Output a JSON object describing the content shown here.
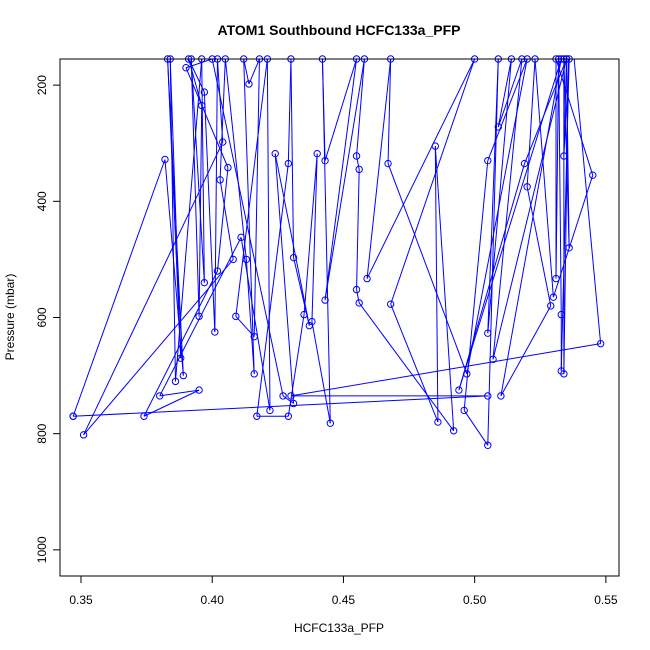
{
  "chart_data": {
    "type": "scatter",
    "title": "ATOM1 Southbound HCFC133a_PFP",
    "xlabel": "HCFC133a_PFP",
    "ylabel": "Pressure (mbar)",
    "xlim": [
      0.342,
      0.555
    ],
    "ylim": [
      1045,
      155
    ],
    "y_reversed": true,
    "x_ticks": [
      0.35,
      0.4,
      0.45,
      0.5,
      0.55
    ],
    "x_tick_labels": [
      "0.35",
      "0.40",
      "0.45",
      "0.50",
      "0.55"
    ],
    "y_ticks": [
      200,
      400,
      600,
      800,
      1000
    ],
    "y_tick_labels": [
      "200",
      "400",
      "600",
      "800",
      "1000"
    ],
    "series_color": "#0000ff",
    "marker": "open-circle",
    "connect_points": true,
    "series": [
      {
        "points": [
          [
            0.347,
            770
          ],
          [
            0.382,
            328
          ],
          [
            0.389,
            700
          ],
          [
            0.383,
            155
          ],
          [
            0.388,
            670
          ],
          [
            0.384,
            155
          ],
          [
            0.386,
            710
          ],
          [
            0.396,
            155
          ],
          [
            0.397,
            540
          ],
          [
            0.392,
            155
          ],
          [
            0.395,
            598
          ],
          [
            0.396,
            235
          ],
          [
            0.391,
            155
          ],
          [
            0.397,
            212
          ],
          [
            0.401,
            625
          ],
          [
            0.402,
            155
          ],
          [
            0.404,
            298
          ],
          [
            0.351,
            802
          ],
          [
            0.408,
            500
          ],
          [
            0.403,
            363
          ],
          [
            0.405,
            155
          ],
          [
            0.413,
            500
          ],
          [
            0.416,
            697
          ],
          [
            0.412,
            155
          ],
          [
            0.414,
            198
          ],
          [
            0.418,
            155
          ],
          [
            0.416,
            633
          ],
          [
            0.409,
            598
          ],
          [
            0.421,
            155
          ],
          [
            0.422,
            760
          ],
          [
            0.411,
            462
          ],
          [
            0.38,
            735
          ],
          [
            0.395,
            725
          ],
          [
            0.374,
            770
          ],
          [
            0.402,
            520
          ],
          [
            0.406,
            342
          ],
          [
            0.39,
            170
          ],
          [
            0.4,
            155
          ],
          [
            0.427,
            735
          ],
          [
            0.431,
            748
          ],
          [
            0.424,
            318
          ],
          [
            0.437,
            614
          ],
          [
            0.431,
            497
          ],
          [
            0.43,
            155
          ],
          [
            0.429,
            335
          ],
          [
            0.417,
            770
          ],
          [
            0.429,
            770
          ],
          [
            0.435,
            595
          ],
          [
            0.44,
            318
          ],
          [
            0.438,
            607
          ],
          [
            0.445,
            782
          ],
          [
            0.442,
            155
          ],
          [
            0.443,
            330
          ],
          [
            0.455,
            155
          ],
          [
            0.443,
            570
          ],
          [
            0.458,
            155
          ],
          [
            0.455,
            322
          ],
          [
            0.456,
            345
          ],
          [
            0.455,
            552
          ],
          [
            0.456,
            575
          ],
          [
            0.492,
            795
          ],
          [
            0.485,
            305
          ],
          [
            0.486,
            780
          ],
          [
            0.468,
            577
          ],
          [
            0.5,
            155
          ],
          [
            0.459,
            533
          ],
          [
            0.468,
            155
          ],
          [
            0.467,
            335
          ],
          [
            0.497,
            697
          ],
          [
            0.52,
            155
          ],
          [
            0.505,
            330
          ],
          [
            0.496,
            760
          ],
          [
            0.505,
            820
          ],
          [
            0.509,
            155
          ],
          [
            0.505,
            627
          ],
          [
            0.514,
            155
          ],
          [
            0.509,
            272
          ],
          [
            0.518,
            155
          ],
          [
            0.507,
            672
          ],
          [
            0.535,
            155
          ],
          [
            0.519,
            335
          ],
          [
            0.494,
            725
          ],
          [
            0.533,
            155
          ],
          [
            0.51,
            735
          ],
          [
            0.529,
            580
          ],
          [
            0.52,
            375
          ],
          [
            0.523,
            155
          ],
          [
            0.53,
            565
          ],
          [
            0.545,
            355
          ],
          [
            0.531,
            155
          ],
          [
            0.531,
            533
          ],
          [
            0.532,
            155
          ],
          [
            0.533,
            595
          ],
          [
            0.533,
            692
          ],
          [
            0.536,
            155
          ],
          [
            0.534,
            322
          ],
          [
            0.535,
            155
          ],
          [
            0.536,
            480
          ],
          [
            0.534,
            155
          ],
          [
            0.534,
            697
          ],
          [
            0.536,
            62
          ],
          [
            0.548,
            645
          ],
          [
            0.43,
            735
          ],
          [
            0.505,
            735
          ],
          [
            0.347,
            770
          ]
        ]
      }
    ]
  }
}
